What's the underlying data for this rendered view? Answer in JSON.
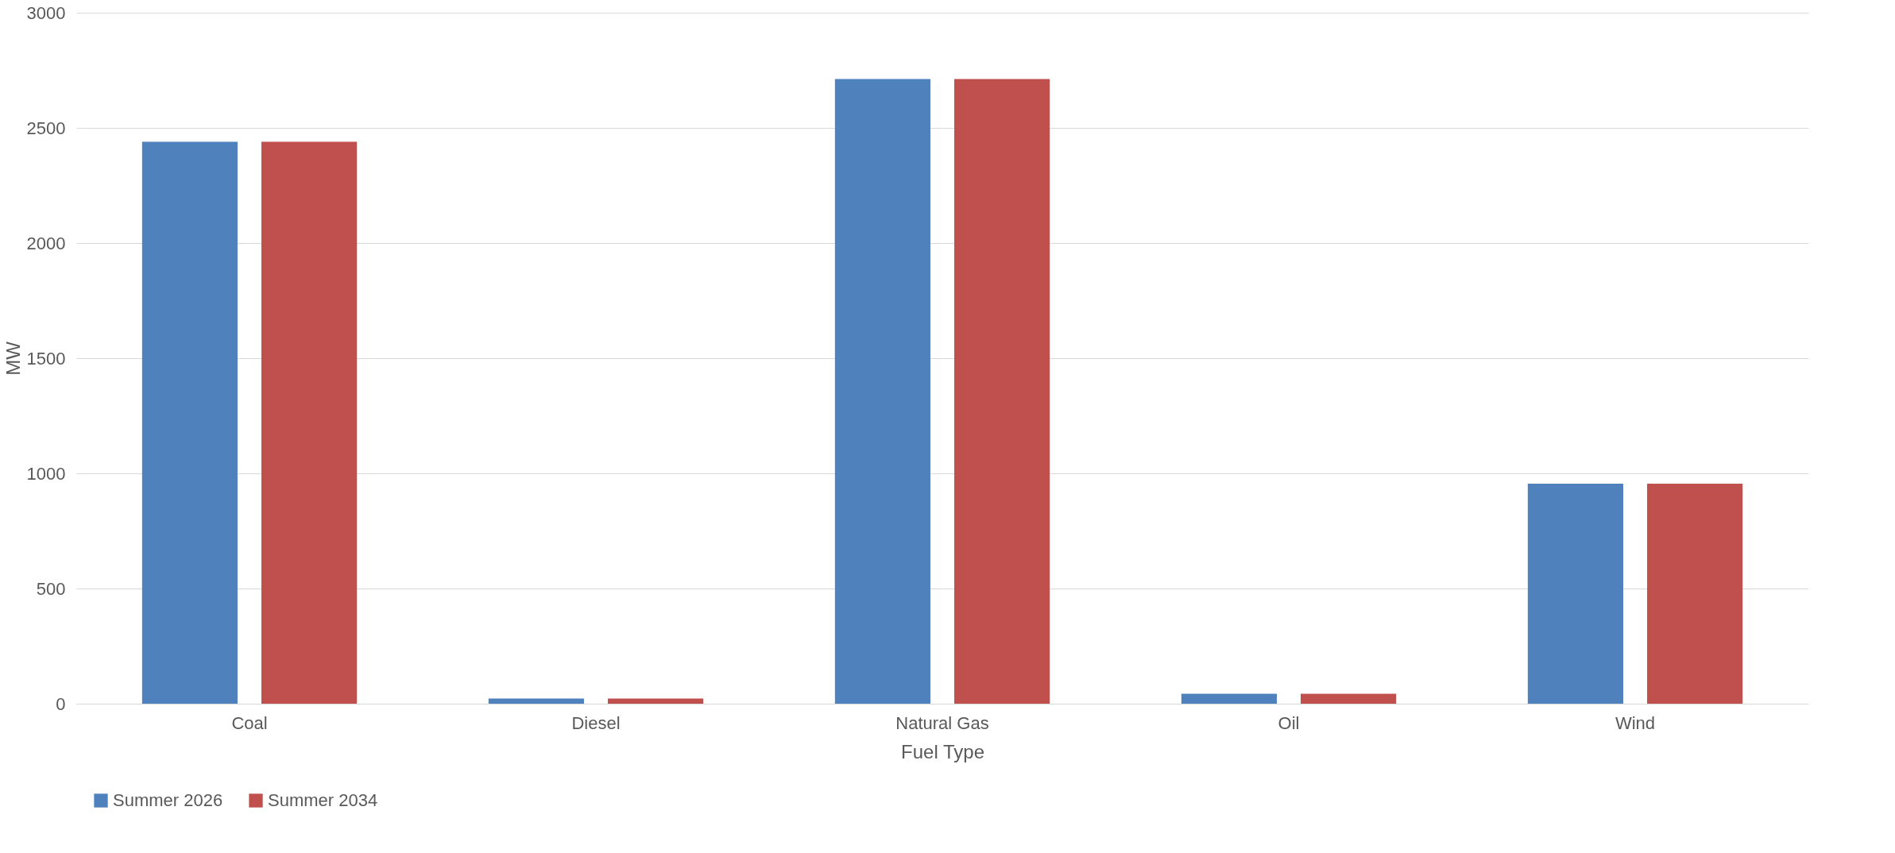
{
  "chart_data": {
    "type": "bar",
    "xlabel": "Fuel Type",
    "ylabel": "MW",
    "categories": [
      "Coal",
      "Diesel",
      "Natural Gas",
      "Oil",
      "Wind"
    ],
    "series": [
      {
        "name": "Summer 2026",
        "color": "#4f81bd",
        "values": [
          2440,
          22,
          2712,
          43,
          955
        ]
      },
      {
        "name": "Summer 2034",
        "color": "#c0504d",
        "values": [
          2440,
          22,
          2712,
          43,
          955
        ]
      }
    ],
    "ylim": [
      0,
      3000
    ],
    "yticks": [
      0,
      500,
      1000,
      1500,
      2000,
      2500,
      3000
    ],
    "grid": "y",
    "legend": "bottom"
  }
}
